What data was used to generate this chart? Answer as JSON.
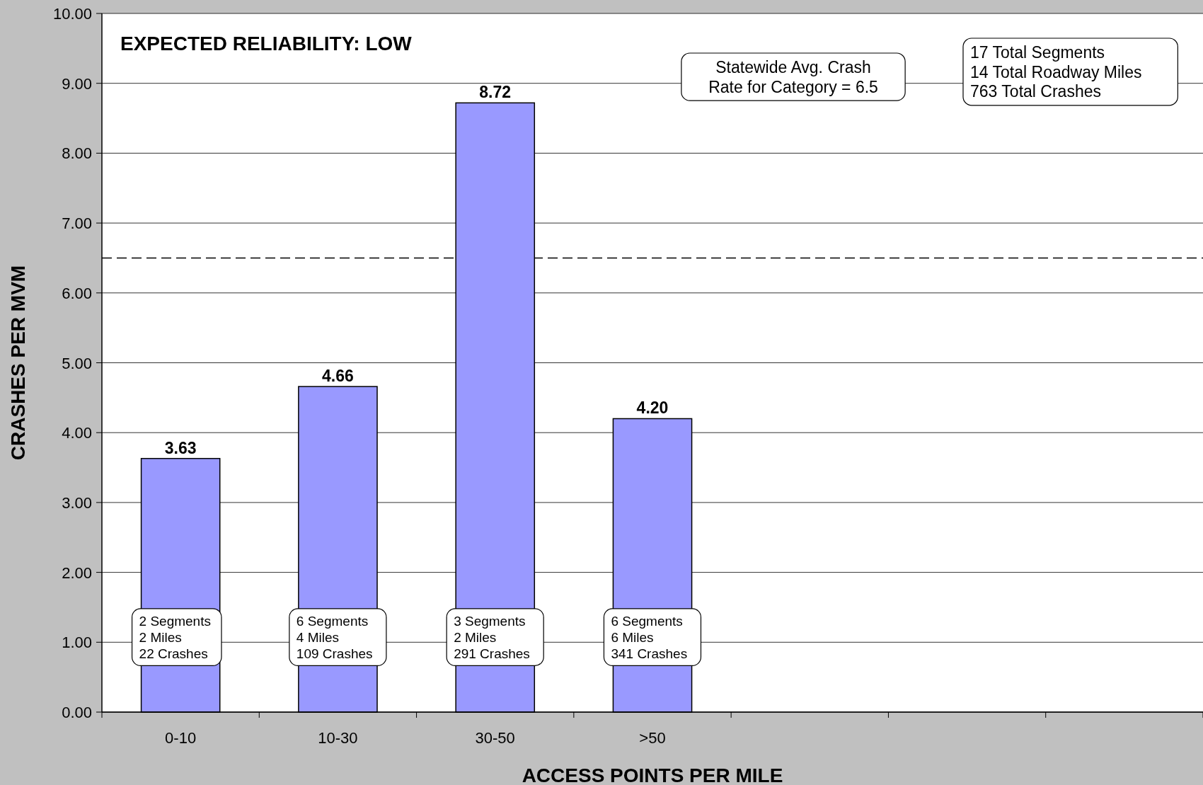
{
  "chart_data": {
    "type": "bar",
    "title": "EXPECTED RELIABILITY: LOW",
    "xlabel": "ACCESS POINTS PER MILE",
    "ylabel": "CRASHES PER MVM",
    "categories": [
      "0-10",
      "10-30",
      "30-50",
      ">50",
      null,
      null,
      null
    ],
    "values": [
      3.63,
      4.66,
      8.72,
      4.2,
      null,
      null,
      null
    ],
    "color": "#9999ff",
    "value_labels": [
      "3.63",
      "4.66",
      "8.72",
      "4.20",
      null,
      null,
      null
    ],
    "ylim": [
      0,
      10
    ],
    "yticks": [
      {
        "value": 0,
        "label": "0.00"
      },
      {
        "value": 1,
        "label": "1.00"
      },
      {
        "value": 2,
        "label": "2.00"
      },
      {
        "value": 3,
        "label": "3.00"
      },
      {
        "value": 4,
        "label": "4.00"
      },
      {
        "value": 5,
        "label": "5.00"
      },
      {
        "value": 6,
        "label": "6.00"
      },
      {
        "value": 7,
        "label": "7.00"
      },
      {
        "value": 8,
        "label": "8.00"
      },
      {
        "value": 9,
        "label": "9.00"
      },
      {
        "value": 10,
        "label": "10.00"
      }
    ],
    "grid": "y",
    "ref_lines": [
      {
        "axis": "y",
        "value": 6.5,
        "label": "Statewide Avg. Crash\nRate for Category = 6.5",
        "color": "#000000",
        "line_style": "dashed"
      }
    ],
    "annotations": [
      "2 Segments\n2 Miles\n22 Crashes",
      "6 Segments\n4 Miles\n109 Crashes",
      "3 Segments\n2 Miles\n291 Crashes",
      "6 Segments\n6 Miles\n341 Crashes",
      "17 Total Segments\n14 Total Roadway Miles\n763 Total Crashes"
    ]
  }
}
